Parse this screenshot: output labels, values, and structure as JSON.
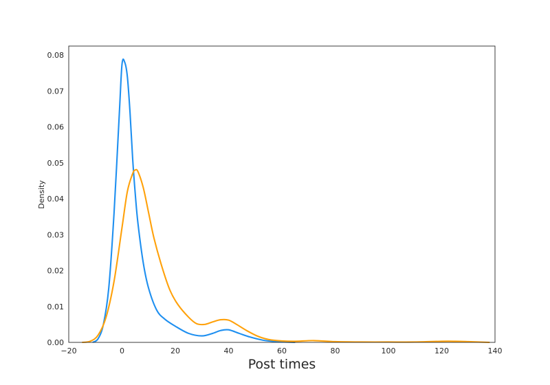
{
  "chart_data": {
    "type": "line",
    "title": "",
    "xlabel": "Post times",
    "ylabel": "Density",
    "xlim": [
      -20,
      140
    ],
    "ylim": [
      0,
      0.0825
    ],
    "grid": false,
    "legend": "none",
    "x_ticks": [
      -20,
      0,
      20,
      40,
      60,
      80,
      100,
      120,
      140
    ],
    "x_tick_labels": [
      "−20",
      "0",
      "20",
      "40",
      "60",
      "80",
      "100",
      "120",
      "140"
    ],
    "y_ticks": [
      0,
      0.01,
      0.02,
      0.03,
      0.04,
      0.05,
      0.06,
      0.07,
      0.08
    ],
    "y_tick_labels": [
      "0.00",
      "0.01",
      "0.02",
      "0.03",
      "0.04",
      "0.05",
      "0.06",
      "0.07",
      "0.08"
    ],
    "series": [
      {
        "color": "#1e8ff0",
        "x": [
          -11,
          -9,
          -7,
          -5,
          -3,
          -1,
          0,
          1,
          2,
          3,
          4,
          5,
          6,
          8,
          10,
          13,
          16,
          20,
          25,
          30,
          34,
          37,
          40,
          44,
          48,
          53,
          58,
          65
        ],
        "y": [
          0.0,
          0.001,
          0.005,
          0.015,
          0.036,
          0.064,
          0.0775,
          0.078,
          0.074,
          0.064,
          0.051,
          0.041,
          0.033,
          0.022,
          0.015,
          0.009,
          0.0065,
          0.0045,
          0.0025,
          0.0018,
          0.0025,
          0.0033,
          0.0035,
          0.0025,
          0.0015,
          0.0006,
          0.0002,
          0.0
        ]
      },
      {
        "color": "#ffa10a",
        "x": [
          -15,
          -12,
          -9,
          -6,
          -3,
          0,
          2,
          4,
          5,
          6,
          8,
          10,
          12,
          15,
          18,
          21,
          25,
          28,
          31,
          34,
          37,
          40,
          43,
          47,
          51,
          55,
          60,
          65,
          72,
          80,
          90,
          100,
          110,
          120,
          125,
          130,
          138
        ],
        "y": [
          0.0,
          0.0003,
          0.002,
          0.007,
          0.017,
          0.032,
          0.042,
          0.047,
          0.048,
          0.0475,
          0.043,
          0.036,
          0.029,
          0.021,
          0.0145,
          0.0105,
          0.007,
          0.0052,
          0.005,
          0.0057,
          0.0063,
          0.0062,
          0.005,
          0.0032,
          0.0017,
          0.0008,
          0.0004,
          0.0003,
          0.0005,
          0.0002,
          0.0001,
          0.0001,
          0.0001,
          0.0003,
          0.0003,
          0.0002,
          0.0
        ]
      }
    ]
  }
}
